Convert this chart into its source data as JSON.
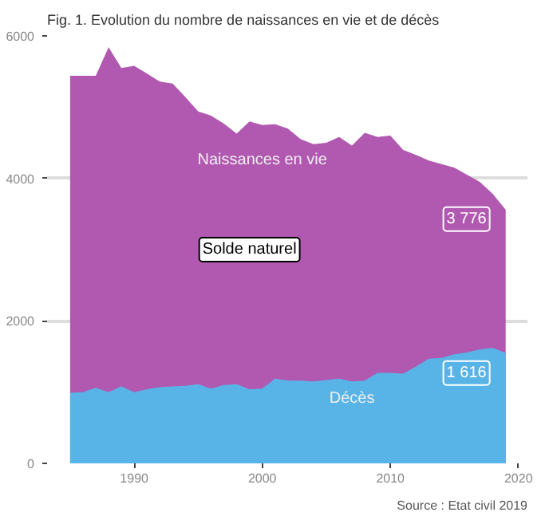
{
  "chart_data": {
    "type": "area",
    "title": "Fig. 1. Evolution du nombre de naissances en vie et de décès",
    "x": [
      1985,
      1986,
      1987,
      1988,
      1989,
      1990,
      1991,
      1992,
      1993,
      1994,
      1995,
      1996,
      1997,
      1998,
      1999,
      2000,
      2001,
      2002,
      2003,
      2004,
      2005,
      2006,
      2007,
      2008,
      2009,
      2010,
      2011,
      2012,
      2013,
      2014,
      2015,
      2016,
      2017,
      2018,
      2019
    ],
    "series": [
      {
        "name": "Naissances en vie",
        "color": "#b159b0",
        "values": [
          5440,
          5440,
          5440,
          5840,
          5550,
          5580,
          5470,
          5360,
          5330,
          5140,
          4940,
          4880,
          4770,
          4630,
          4800,
          4750,
          4760,
          4700,
          4550,
          4480,
          4500,
          4580,
          4460,
          4640,
          4580,
          4600,
          4400,
          4330,
          4250,
          4200,
          4150,
          4050,
          3950,
          3780,
          3560
        ]
      },
      {
        "name": "Décès",
        "color": "#58b4e6",
        "values": [
          990,
          1000,
          1060,
          1000,
          1080,
          1000,
          1040,
          1070,
          1080,
          1090,
          1110,
          1050,
          1100,
          1110,
          1040,
          1050,
          1190,
          1160,
          1160,
          1150,
          1170,
          1190,
          1150,
          1160,
          1270,
          1270,
          1260,
          1360,
          1470,
          1480,
          1530,
          1560,
          1600,
          1620,
          1550
        ]
      }
    ],
    "annotations": [
      {
        "text": "3 776",
        "x": 2018,
        "y": 3776
      },
      {
        "text": "1 616",
        "x": 2018,
        "y": 1616
      },
      "Solde naturel",
      "Source : Etat civil 2019"
    ],
    "xlim": [
      1983.2,
      2020.7
    ],
    "xticks": [
      1990,
      2000,
      2010,
      2020
    ],
    "ylim": [
      0,
      6000
    ],
    "yticks": [
      0,
      2000,
      4000,
      6000
    ],
    "grid": "y",
    "legend": false
  }
}
